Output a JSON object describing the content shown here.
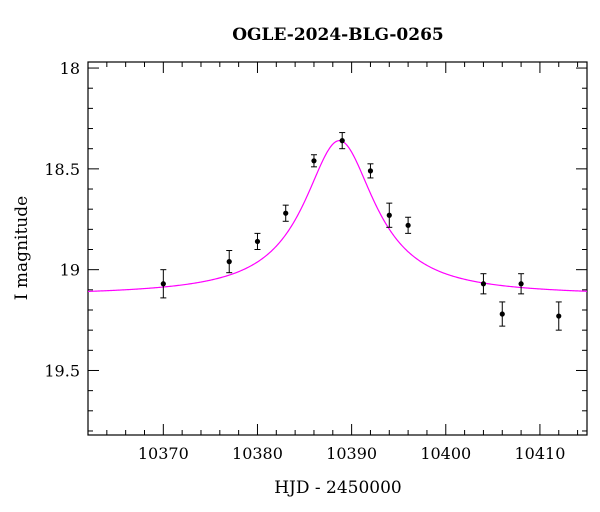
{
  "chart_data": {
    "type": "scatter",
    "title": "OGLE-2024-BLG-0265",
    "xlabel": "HJD - 2450000",
    "ylabel": "I magnitude",
    "xlim": [
      10362,
      10415
    ],
    "ylim": [
      19.82,
      17.97
    ],
    "y_inverted": true,
    "x_ticks": [
      "10370",
      "10380",
      "10390",
      "10400",
      "10410"
    ],
    "y_ticks": [
      "18",
      "18.5",
      "19",
      "19.5"
    ],
    "x_major_step": 10,
    "x_minor_step": 2,
    "y_major_step": 0.5,
    "y_minor_step": 0.1,
    "grid": false,
    "points": [
      {
        "x": 10370.0,
        "y": 19.07,
        "err": 0.07
      },
      {
        "x": 10377.0,
        "y": 18.96,
        "err": 0.055
      },
      {
        "x": 10380.0,
        "y": 18.86,
        "err": 0.04
      },
      {
        "x": 10383.0,
        "y": 18.72,
        "err": 0.04
      },
      {
        "x": 10386.0,
        "y": 18.46,
        "err": 0.03
      },
      {
        "x": 10389.0,
        "y": 18.36,
        "err": 0.04
      },
      {
        "x": 10392.0,
        "y": 18.51,
        "err": 0.035
      },
      {
        "x": 10394.0,
        "y": 18.73,
        "err": 0.06
      },
      {
        "x": 10396.0,
        "y": 18.78,
        "err": 0.04
      },
      {
        "x": 10404.0,
        "y": 19.07,
        "err": 0.05
      },
      {
        "x": 10406.0,
        "y": 19.22,
        "err": 0.06
      },
      {
        "x": 10408.0,
        "y": 19.07,
        "err": 0.05
      },
      {
        "x": 10412.0,
        "y": 19.23,
        "err": 0.07
      }
    ],
    "model": {
      "name": "",
      "color": "#ff00ff",
      "t0": 10388.7,
      "peak_mag": 18.36,
      "baseline_mag": 19.13,
      "tE_scale": 4.6
    }
  }
}
